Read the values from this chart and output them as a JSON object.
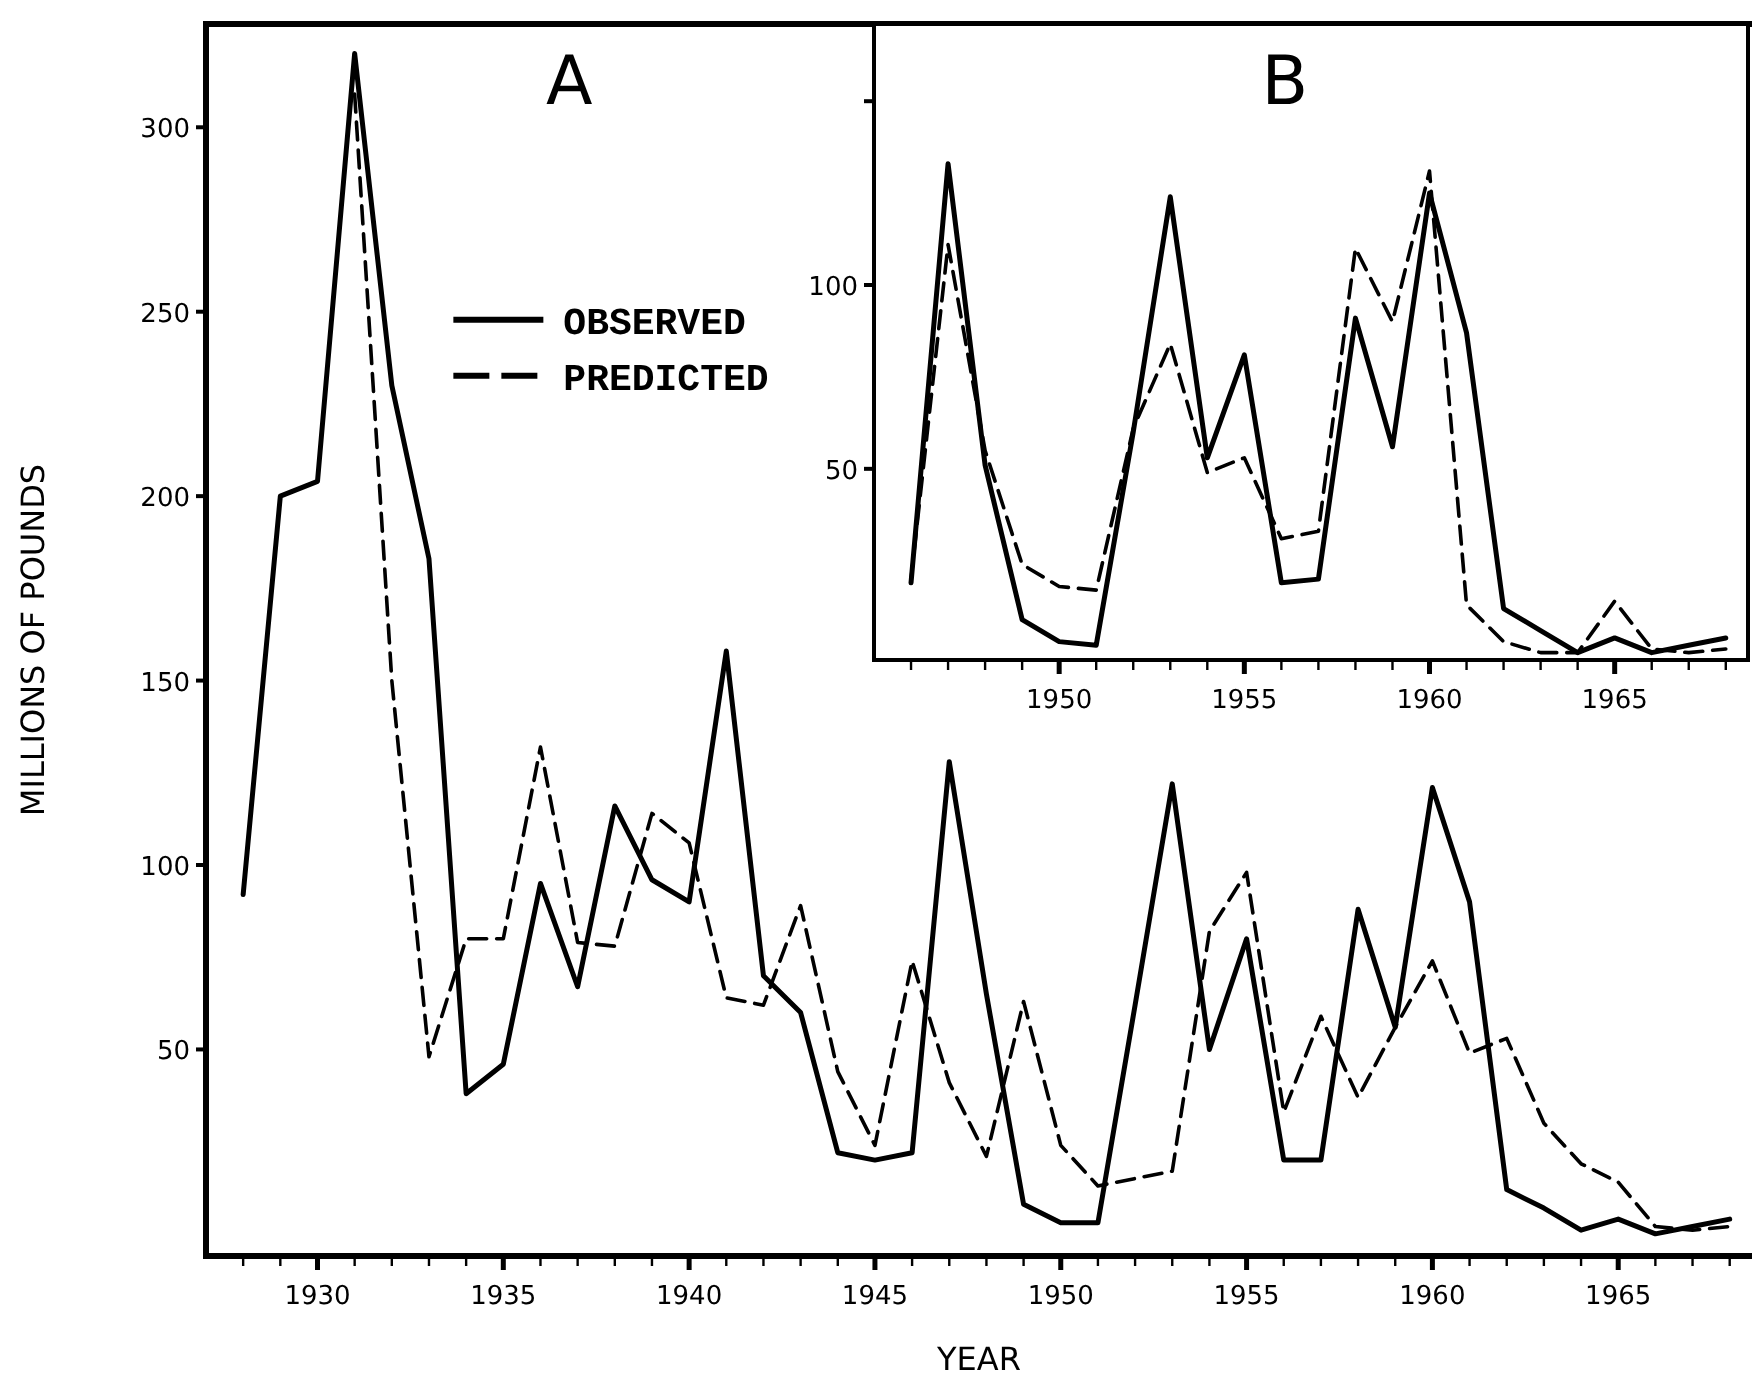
{
  "chart_data": [
    {
      "type": "line",
      "title": "A",
      "xlabel": "YEAR",
      "ylabel": "MILLIONS OF POUNDS",
      "xlim": [
        1927,
        1968.6
      ],
      "ylim": [
        -6,
        328
      ],
      "xticks": [
        {
          "value": 1928,
          "label": null
        },
        {
          "value": 1929,
          "label": null
        },
        1930,
        {
          "value": 1931,
          "label": null
        },
        {
          "value": 1932,
          "label": null
        },
        {
          "value": 1933,
          "label": null
        },
        {
          "value": 1934,
          "label": null
        },
        1935,
        {
          "value": 1936,
          "label": null
        },
        {
          "value": 1937,
          "label": null
        },
        {
          "value": 1938,
          "label": null
        },
        {
          "value": 1939,
          "label": null
        },
        1940,
        {
          "value": 1941,
          "label": null
        },
        {
          "value": 1942,
          "label": null
        },
        {
          "value": 1943,
          "label": null
        },
        {
          "value": 1944,
          "label": null
        },
        1945,
        {
          "value": 1946,
          "label": null
        },
        {
          "value": 1947,
          "label": null
        },
        {
          "value": 1948,
          "label": null
        },
        {
          "value": 1949,
          "label": null
        },
        1950,
        {
          "value": 1951,
          "label": null
        },
        {
          "value": 1952,
          "label": null
        },
        {
          "value": 1953,
          "label": null
        },
        {
          "value": 1954,
          "label": null
        },
        1955,
        {
          "value": 1956,
          "label": null
        },
        {
          "value": 1957,
          "label": null
        },
        {
          "value": 1958,
          "label": null
        },
        {
          "value": 1959,
          "label": null
        },
        1960,
        {
          "value": 1961,
          "label": null
        },
        {
          "value": 1962,
          "label": null
        },
        {
          "value": 1963,
          "label": null
        },
        {
          "value": 1964,
          "label": null
        },
        1965,
        {
          "value": 1966,
          "label": null
        },
        {
          "value": 1967,
          "label": null
        },
        {
          "value": 1968,
          "label": null
        }
      ],
      "yticks": [
        50,
        100,
        150,
        200,
        250,
        300
      ],
      "legend": "top",
      "grid": false,
      "marker": "none",
      "series": [
        {
          "name": "OBSERVED",
          "color": "#000000",
          "line_style": "solid",
          "x": [
            1928,
            1929,
            1930,
            1931,
            1932,
            1933,
            1934,
            1935,
            1936,
            1937,
            1938,
            1939,
            1940,
            1941,
            1942,
            1943,
            1944,
            1945,
            1946,
            1947,
            1948,
            1949,
            1950,
            1951,
            1952,
            1953,
            1954,
            1955,
            1956,
            1957,
            1958,
            1959,
            1960,
            1961,
            1962,
            1963,
            1964,
            1965,
            1966,
            1967,
            1968
          ],
          "values": [
            92,
            200,
            204,
            320,
            230,
            183,
            38,
            46,
            95,
            67,
            116,
            96,
            90,
            158,
            70,
            60,
            22,
            20,
            22,
            128,
            65,
            8,
            3,
            3,
            62,
            122,
            50,
            80,
            20,
            20,
            88,
            56,
            121,
            90,
            12,
            7,
            1,
            4,
            0,
            2,
            4
          ]
        },
        {
          "name": "PREDICTED",
          "color": "#000000",
          "line_style": "dashed",
          "x": [
            1931,
            1932,
            1933,
            1934,
            1935,
            1936,
            1937,
            1938,
            1939,
            1940,
            1941,
            1942,
            1943,
            1944,
            1945,
            1946,
            1947,
            1948,
            1949,
            1950,
            1951,
            1952,
            1953,
            1954,
            1955,
            1956,
            1957,
            1958,
            1959,
            1960,
            1961,
            1962,
            1963,
            1964,
            1965,
            1966,
            1967,
            1968
          ],
          "values": [
            309,
            150,
            48,
            80,
            80,
            132,
            79,
            78,
            114,
            106,
            64,
            62,
            89,
            44,
            24,
            74,
            41,
            21,
            63,
            24,
            13,
            15,
            17,
            82,
            98,
            33,
            59,
            37,
            56,
            74,
            49,
            53,
            30,
            19,
            14,
            2,
            1,
            2
          ]
        }
      ]
    },
    {
      "type": "line",
      "title": "B",
      "xlim": [
        1945,
        1968.6
      ],
      "ylim": [
        -2,
        171
      ],
      "xticks": [
        {
          "value": 1946,
          "label": null
        },
        {
          "value": 1947,
          "label": null
        },
        {
          "value": 1948,
          "label": null
        },
        {
          "value": 1949,
          "label": null
        },
        1950,
        {
          "value": 1951,
          "label": null
        },
        {
          "value": 1952,
          "label": null
        },
        {
          "value": 1953,
          "label": null
        },
        {
          "value": 1954,
          "label": null
        },
        1955,
        {
          "value": 1956,
          "label": null
        },
        {
          "value": 1957,
          "label": null
        },
        {
          "value": 1958,
          "label": null
        },
        {
          "value": 1959,
          "label": null
        },
        1960,
        {
          "value": 1961,
          "label": null
        },
        {
          "value": 1962,
          "label": null
        },
        {
          "value": 1963,
          "label": null
        },
        {
          "value": 1964,
          "label": null
        },
        1965,
        {
          "value": 1966,
          "label": null
        },
        {
          "value": 1967,
          "label": null
        },
        {
          "value": 1968,
          "label": null
        }
      ],
      "yticks": [
        50,
        100,
        {
          "value": 150,
          "label": null
        }
      ],
      "grid": false,
      "marker": "none",
      "series": [
        {
          "color": "#000000",
          "line_style": "solid",
          "x": [
            1946,
            1947,
            1948,
            1949,
            1950,
            1951,
            1952,
            1953,
            1954,
            1955,
            1956,
            1957,
            1958,
            1959,
            1960,
            1961,
            1962,
            1963,
            1964,
            1965,
            1966,
            1967,
            1968
          ],
          "values": [
            19,
            133,
            51,
            9,
            3,
            2,
            60,
            124,
            53,
            81,
            19,
            20,
            91,
            56,
            125,
            87,
            12,
            6,
            0,
            4,
            0,
            2,
            4
          ]
        },
        {
          "color": "#000000",
          "line_style": "dashed",
          "x": [
            1946,
            1947,
            1948,
            1949,
            1950,
            1951,
            1952,
            1953,
            1954,
            1955,
            1956,
            1957,
            1958,
            1959,
            1960,
            1961,
            1962,
            1963,
            1964,
            1965,
            1966,
            1967,
            1968
          ],
          "values": [
            20,
            111,
            55,
            24,
            18,
            17,
            61,
            84,
            49,
            53,
            31,
            33,
            110,
            90,
            131,
            13,
            3,
            0,
            0,
            14,
            1,
            0,
            1
          ]
        }
      ]
    }
  ]
}
